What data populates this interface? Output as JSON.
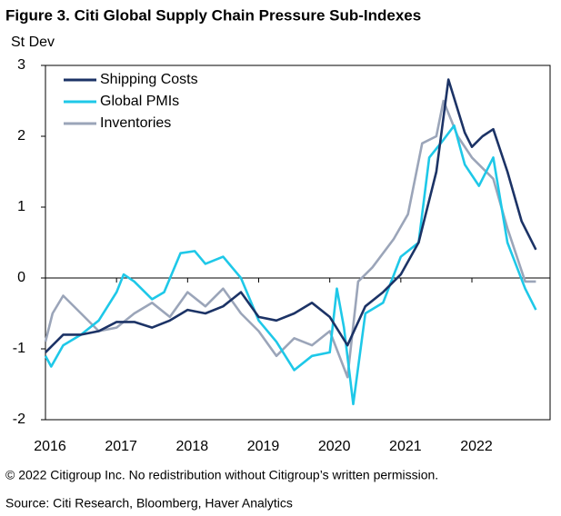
{
  "chart_data": {
    "type": "line",
    "title": "Figure 3. Citi Global Supply Chain Pressure Sub-Indexes",
    "ylabel": "St Dev",
    "xlim": [
      2016,
      2023.1
    ],
    "xticks": [
      2016,
      2017,
      2018,
      2019,
      2020,
      2021,
      2022
    ],
    "ylim": [
      -2,
      3
    ],
    "yticks": [
      -2,
      -1,
      0,
      1,
      2,
      3
    ],
    "legend": "upper left",
    "series": [
      {
        "name": "Shipping Costs",
        "color": "#1c3366",
        "x": [
          2016.0,
          2016.25,
          2016.5,
          2016.75,
          2017.0,
          2017.25,
          2017.5,
          2017.75,
          2018.0,
          2018.25,
          2018.5,
          2018.75,
          2019.0,
          2019.25,
          2019.5,
          2019.75,
          2020.0,
          2020.25,
          2020.5,
          2020.75,
          2021.0,
          2021.25,
          2021.5,
          2021.67,
          2021.9,
          2022.0,
          2022.15,
          2022.3,
          2022.5,
          2022.7,
          2022.9
        ],
        "values": [
          -1.05,
          -0.8,
          -0.8,
          -0.75,
          -0.62,
          -0.62,
          -0.7,
          -0.6,
          -0.45,
          -0.5,
          -0.4,
          -0.2,
          -0.55,
          -0.6,
          -0.5,
          -0.35,
          -0.55,
          -0.95,
          -0.4,
          -0.2,
          0.05,
          0.5,
          1.5,
          2.8,
          2.05,
          1.85,
          2.0,
          2.1,
          1.5,
          0.8,
          0.4
        ]
      },
      {
        "name": "Global PMIs",
        "color": "#1ec8e8",
        "x": [
          2016.0,
          2016.08,
          2016.25,
          2016.5,
          2016.75,
          2017.0,
          2017.1,
          2017.25,
          2017.5,
          2017.67,
          2017.9,
          2018.1,
          2018.25,
          2018.5,
          2018.75,
          2019.0,
          2019.25,
          2019.5,
          2019.75,
          2020.0,
          2020.1,
          2020.2,
          2020.33,
          2020.5,
          2020.75,
          2021.0,
          2021.25,
          2021.4,
          2021.6,
          2021.75,
          2021.9,
          2022.1,
          2022.3,
          2022.5,
          2022.75,
          2022.9
        ],
        "values": [
          -1.1,
          -1.25,
          -0.95,
          -0.8,
          -0.6,
          -0.2,
          0.05,
          -0.05,
          -0.3,
          -0.2,
          0.35,
          0.38,
          0.2,
          0.3,
          0.0,
          -0.6,
          -0.9,
          -1.3,
          -1.1,
          -1.05,
          -0.15,
          -0.7,
          -1.78,
          -0.5,
          -0.35,
          0.3,
          0.5,
          1.7,
          1.95,
          2.15,
          1.6,
          1.3,
          1.7,
          0.5,
          -0.15,
          -0.45
        ]
      },
      {
        "name": "Inventories",
        "color": "#9ba5b9",
        "x": [
          2016.0,
          2016.1,
          2016.25,
          2016.5,
          2016.75,
          2017.0,
          2017.25,
          2017.5,
          2017.75,
          2018.0,
          2018.25,
          2018.5,
          2018.75,
          2019.0,
          2019.25,
          2019.5,
          2019.75,
          2020.0,
          2020.25,
          2020.4,
          2020.6,
          2020.9,
          2021.1,
          2021.3,
          2021.5,
          2021.6,
          2021.8,
          2022.0,
          2022.3,
          2022.5,
          2022.75,
          2022.9
        ],
        "values": [
          -0.9,
          -0.5,
          -0.25,
          -0.5,
          -0.75,
          -0.7,
          -0.5,
          -0.35,
          -0.55,
          -0.2,
          -0.4,
          -0.15,
          -0.5,
          -0.75,
          -1.1,
          -0.85,
          -0.95,
          -0.75,
          -1.4,
          -0.05,
          0.15,
          0.55,
          0.9,
          1.9,
          2.0,
          2.5,
          2.0,
          1.7,
          1.4,
          0.7,
          -0.05,
          -0.05
        ]
      }
    ],
    "copyright": "© 2022 Citigroup Inc. No redistribution without Citigroup’s written permission.",
    "source": "Source: Citi Research, Bloomberg, Haver Analytics"
  }
}
